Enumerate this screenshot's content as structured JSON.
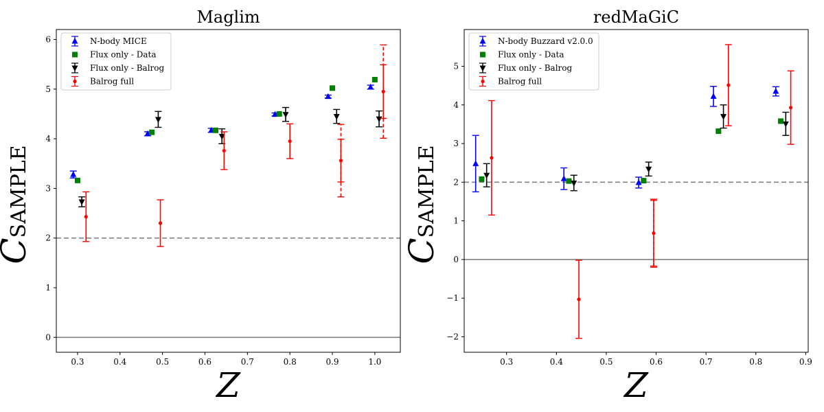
{
  "chart_data": [
    {
      "type": "scatter",
      "title": "Maglim",
      "xlabel": "Z",
      "ylabel_main": "C",
      "ylabel_sub": "SAMPLE",
      "xlim": [
        0.25,
        1.06
      ],
      "ylim": [
        -0.3,
        6.2
      ],
      "xticks": [
        0.3,
        0.4,
        0.5,
        0.6,
        0.7,
        0.8,
        0.9,
        1.0
      ],
      "xtick_labels": [
        "0.3",
        "0.4",
        "0.5",
        "0.6",
        "0.7",
        "0.8",
        "0.9",
        "1.0"
      ],
      "yticks": [
        0,
        1,
        2,
        3,
        4,
        5,
        6
      ],
      "ytick_labels": [
        "0",
        "1",
        "2",
        "3",
        "4",
        "5",
        "6"
      ],
      "hlines": [
        {
          "y": 2,
          "style": "dashed",
          "color": "#808080"
        },
        {
          "y": 0,
          "style": "solid",
          "color": "#808080"
        }
      ],
      "legend_position": "top-left",
      "series": [
        {
          "name": "N-body MICE",
          "color": "#0000ff",
          "marker": "triangle-up",
          "x": [
            0.29,
            0.465,
            0.615,
            0.765,
            0.89,
            0.99
          ],
          "y": [
            3.28,
            4.1,
            4.17,
            4.49,
            4.85,
            5.04
          ],
          "err": [
            0.07,
            0.04,
            0.04,
            0.03,
            0.03,
            0.04
          ]
        },
        {
          "name": "Flux only - Data",
          "color": "#008000",
          "marker": "square",
          "x": [
            0.3,
            0.475,
            0.625,
            0.775,
            0.9,
            1.0
          ],
          "y": [
            3.16,
            4.13,
            4.17,
            4.5,
            5.02,
            5.19
          ],
          "err": null
        },
        {
          "name": "Flux only - Balrog",
          "color": "#000000",
          "marker": "triangle-down",
          "x": [
            0.31,
            0.49,
            0.64,
            0.79,
            0.91,
            1.01
          ],
          "y": [
            2.73,
            4.39,
            4.05,
            4.49,
            4.45,
            4.4
          ],
          "err": [
            0.1,
            0.16,
            0.15,
            0.14,
            0.14,
            0.16
          ]
        },
        {
          "name": "Balrog full",
          "color": "#ff0000",
          "marker": "circle",
          "x": [
            0.32,
            0.495,
            0.645,
            0.8,
            0.92,
            1.02
          ],
          "y": [
            2.43,
            2.3,
            3.76,
            3.95,
            3.56,
            4.95
          ],
          "err": [
            0.5,
            0.47,
            0.38,
            0.35,
            0.43,
            0.54
          ],
          "err_outer": [
            0.51,
            0.47,
            0.39,
            0.35,
            0.73,
            0.94
          ]
        }
      ]
    },
    {
      "type": "scatter",
      "title": "redMaGiC",
      "xlabel": "Z",
      "ylabel_main": "C",
      "ylabel_sub": "SAMPLE",
      "xlim": [
        0.215,
        0.905
      ],
      "ylim": [
        -2.4,
        5.95
      ],
      "xticks": [
        0.3,
        0.4,
        0.5,
        0.6,
        0.7,
        0.8,
        0.9
      ],
      "xtick_labels": [
        "0.3",
        "0.4",
        "0.5",
        "0.6",
        "0.7",
        "0.8",
        "0.9"
      ],
      "yticks": [
        -2,
        -1,
        0,
        1,
        2,
        3,
        4,
        5
      ],
      "ytick_labels": [
        "−2",
        "−1",
        "0",
        "1",
        "2",
        "3",
        "4",
        "5"
      ],
      "hlines": [
        {
          "y": 2,
          "style": "dashed",
          "color": "#808080"
        },
        {
          "y": 0,
          "style": "solid",
          "color": "#808080"
        }
      ],
      "legend_position": "top-left",
      "series": [
        {
          "name": "N-body Buzzard v2.0.0",
          "color": "#0000ff",
          "marker": "triangle-up",
          "x": [
            0.238,
            0.415,
            0.565,
            0.715,
            0.84
          ],
          "y": [
            2.48,
            2.09,
            1.99,
            4.22,
            4.35
          ],
          "err": [
            0.73,
            0.28,
            0.14,
            0.26,
            0.12
          ]
        },
        {
          "name": "Flux only - Data",
          "color": "#008000",
          "marker": "square",
          "x": [
            0.25,
            0.425,
            0.575,
            0.725,
            0.85
          ],
          "y": [
            2.08,
            2.03,
            2.04,
            3.32,
            3.58
          ],
          "err": null
        },
        {
          "name": "Flux only - Balrog",
          "color": "#000000",
          "marker": "triangle-down",
          "x": [
            0.26,
            0.435,
            0.585,
            0.735,
            0.86
          ],
          "y": [
            2.18,
            1.98,
            2.34,
            3.7,
            3.51
          ],
          "err": [
            0.3,
            0.2,
            0.18,
            0.3,
            0.3
          ]
        },
        {
          "name": "Balrog full",
          "color": "#ff0000",
          "marker": "circle",
          "x": [
            0.27,
            0.445,
            0.595,
            0.745,
            0.87
          ],
          "y": [
            2.63,
            -1.03,
            0.68,
            4.51,
            3.93
          ],
          "err": [
            1.48,
            1.01,
            0.85,
            1.05,
            0.95
          ],
          "err_outer": [
            1.48,
            1.01,
            0.88,
            1.05,
            0.95
          ]
        }
      ]
    }
  ]
}
